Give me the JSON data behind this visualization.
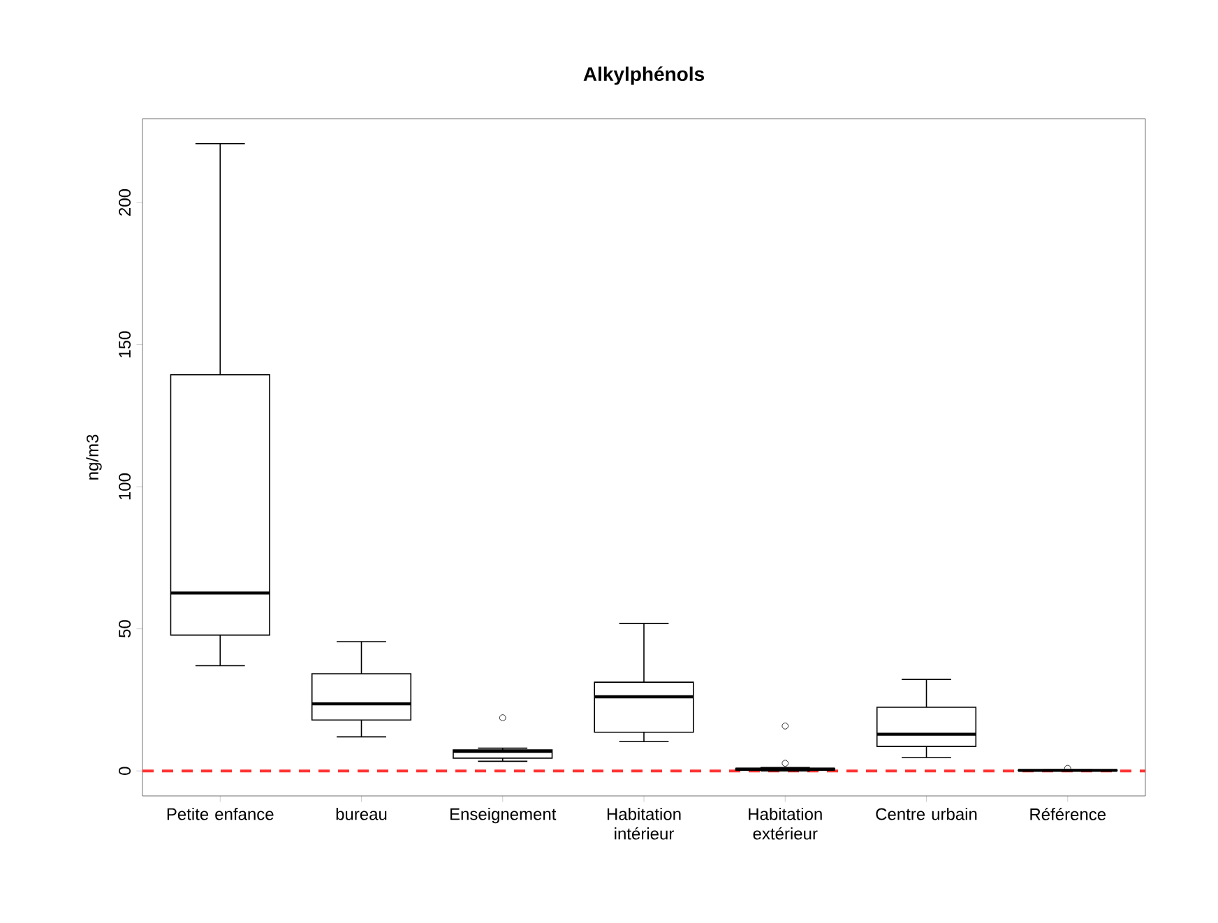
{
  "chart_data": {
    "type": "box",
    "title": "Alkylphénols",
    "ylabel": "ng/m3",
    "categories": [
      "Petite enfance",
      "bureau",
      "Enseignement",
      "Habitation intérieur",
      "Habitation extérieur",
      "Centre urbain",
      "Référence"
    ],
    "boxes": [
      {
        "low": 37,
        "q1": 47.8,
        "median": 62.6,
        "q3": 139.4,
        "high": 220.7
      },
      {
        "low": 12,
        "q1": 17.9,
        "median": 23.6,
        "q3": 34.2,
        "high": 45.5
      },
      {
        "low": 3.4,
        "q1": 4.5,
        "median": 6.9,
        "q3": 7.4,
        "high": 8,
        "outliers": [
          18.7
        ]
      },
      {
        "low": 10.3,
        "q1": 13.6,
        "median": 26.1,
        "q3": 31.2,
        "high": 51.9
      },
      {
        "low": 0,
        "q1": 0.3,
        "median": 0.6,
        "q3": 0.9,
        "high": 1.2,
        "outliers": [
          2.7,
          15.8
        ]
      },
      {
        "low": 4.7,
        "q1": 8.6,
        "median": 12.9,
        "q3": 22.4,
        "high": 32.2
      },
      {
        "low": 0,
        "q1": 0.1,
        "median": 0.2,
        "q3": 0.3,
        "high": 0.4,
        "outliers": [
          0.9
        ]
      }
    ],
    "ylim": [
      -8.8,
      229.5
    ],
    "yticks": [
      0,
      50,
      100,
      150,
      200
    ],
    "ref_lines": [
      {
        "axis": "y",
        "value": 0,
        "color": "#ff3333",
        "line_style": "dashed"
      }
    ]
  }
}
